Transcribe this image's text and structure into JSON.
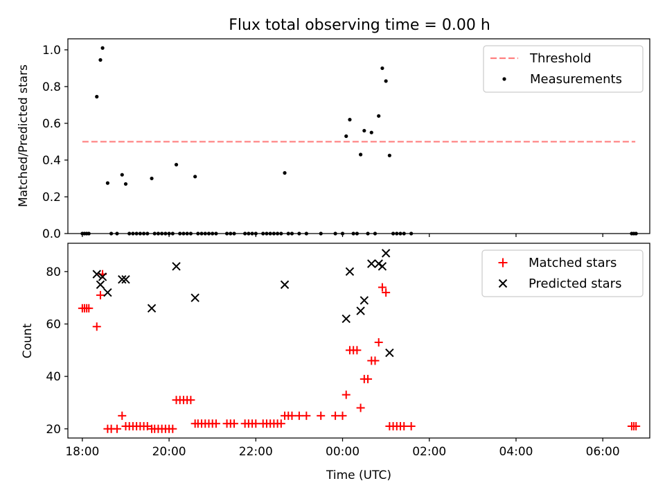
{
  "figure_title": "Flux total observing time = 0.00 h",
  "xlabel": "Time (UTC)",
  "chart_data": [
    {
      "type": "scatter",
      "ylabel": "Matched/Predicted stars",
      "ylim": [
        0.0,
        1.06
      ],
      "xlim": [
        "17:40",
        "07:05"
      ],
      "yticks": [
        "0.0",
        "0.2",
        "0.4",
        "0.6",
        "0.8",
        "1.0"
      ],
      "ytick_values": [
        0.0,
        0.2,
        0.4,
        0.6,
        0.8,
        1.0
      ],
      "grid": false,
      "legend_position": "top-right",
      "series": [
        {
          "name": "Threshold",
          "kind": "dashed-line",
          "color": "#ff7f7f",
          "points": [
            [
              "18:00",
              0.5
            ],
            [
              "06:45",
              0.5
            ]
          ]
        },
        {
          "name": "Measurements",
          "kind": "dot",
          "color": "#000000",
          "points": [
            [
              "18:00",
              0.0
            ],
            [
              "18:03",
              0.0
            ],
            [
              "18:06",
              0.0
            ],
            [
              "18:09",
              0.0
            ],
            [
              "18:20",
              0.745
            ],
            [
              "18:25",
              0.945
            ],
            [
              "18:28",
              1.01
            ],
            [
              "18:35",
              0.275
            ],
            [
              "18:40",
              0.0
            ],
            [
              "18:48",
              0.0
            ],
            [
              "18:55",
              0.32
            ],
            [
              "19:00",
              0.27
            ],
            [
              "19:05",
              0.0
            ],
            [
              "19:10",
              0.0
            ],
            [
              "19:15",
              0.0
            ],
            [
              "19:20",
              0.0
            ],
            [
              "19:25",
              0.0
            ],
            [
              "19:30",
              0.0
            ],
            [
              "19:36",
              0.3
            ],
            [
              "19:40",
              0.0
            ],
            [
              "19:45",
              0.0
            ],
            [
              "19:50",
              0.0
            ],
            [
              "19:55",
              0.0
            ],
            [
              "20:00",
              0.0
            ],
            [
              "20:05",
              0.0
            ],
            [
              "20:10",
              0.375
            ],
            [
              "20:15",
              0.0
            ],
            [
              "20:20",
              0.0
            ],
            [
              "20:25",
              0.0
            ],
            [
              "20:30",
              0.0
            ],
            [
              "20:36",
              0.31
            ],
            [
              "20:40",
              0.0
            ],
            [
              "20:45",
              0.0
            ],
            [
              "20:50",
              0.0
            ],
            [
              "20:55",
              0.0
            ],
            [
              "21:00",
              0.0
            ],
            [
              "21:05",
              0.0
            ],
            [
              "21:20",
              0.0
            ],
            [
              "21:25",
              0.0
            ],
            [
              "21:30",
              0.0
            ],
            [
              "21:45",
              0.0
            ],
            [
              "21:50",
              0.0
            ],
            [
              "21:55",
              0.0
            ],
            [
              "22:00",
              0.0
            ],
            [
              "22:10",
              0.0
            ],
            [
              "22:15",
              0.0
            ],
            [
              "22:20",
              0.0
            ],
            [
              "22:25",
              0.0
            ],
            [
              "22:30",
              0.0
            ],
            [
              "22:35",
              0.0
            ],
            [
              "22:40",
              0.33
            ],
            [
              "22:45",
              0.0
            ],
            [
              "22:50",
              0.0
            ],
            [
              "23:00",
              0.0
            ],
            [
              "23:10",
              0.0
            ],
            [
              "23:30",
              0.0
            ],
            [
              "23:50",
              0.0
            ],
            [
              "00:00",
              0.0
            ],
            [
              "00:05",
              0.53
            ],
            [
              "00:10",
              0.62
            ],
            [
              "00:15",
              0.0
            ],
            [
              "00:20",
              0.0
            ],
            [
              "00:25",
              0.43
            ],
            [
              "00:30",
              0.56
            ],
            [
              "00:35",
              0.0
            ],
            [
              "00:40",
              0.55
            ],
            [
              "00:45",
              0.0
            ],
            [
              "00:50",
              0.64
            ],
            [
              "00:55",
              0.9
            ],
            [
              "01:00",
              0.83
            ],
            [
              "01:05",
              0.425
            ],
            [
              "01:10",
              0.0
            ],
            [
              "01:15",
              0.0
            ],
            [
              "01:20",
              0.0
            ],
            [
              "01:25",
              0.0
            ],
            [
              "01:35",
              0.0
            ],
            [
              "06:40",
              0.0
            ],
            [
              "06:43",
              0.0
            ],
            [
              "06:46",
              0.0
            ]
          ]
        }
      ]
    },
    {
      "type": "scatter",
      "ylabel": "Count",
      "ylim": [
        16.5,
        90.8
      ],
      "xlim": [
        "17:40",
        "07:05"
      ],
      "yticks": [
        "20",
        "40",
        "60",
        "80"
      ],
      "ytick_values": [
        20,
        40,
        60,
        80
      ],
      "xticks": [
        "18:00",
        "20:00",
        "22:00",
        "00:00",
        "02:00",
        "04:00",
        "06:00"
      ],
      "grid": false,
      "legend_position": "top-right",
      "series": [
        {
          "name": "Matched stars",
          "kind": "plus",
          "color": "#ff0000",
          "points": [
            [
              "18:00",
              66
            ],
            [
              "18:03",
              66
            ],
            [
              "18:06",
              66
            ],
            [
              "18:09",
              66
            ],
            [
              "18:20",
              59
            ],
            [
              "18:25",
              71
            ],
            [
              "18:28",
              79
            ],
            [
              "18:35",
              20
            ],
            [
              "18:40",
              20
            ],
            [
              "18:48",
              20
            ],
            [
              "18:55",
              25
            ],
            [
              "19:00",
              21
            ],
            [
              "19:05",
              21
            ],
            [
              "19:10",
              21
            ],
            [
              "19:15",
              21
            ],
            [
              "19:20",
              21
            ],
            [
              "19:25",
              21
            ],
            [
              "19:30",
              21
            ],
            [
              "19:36",
              20
            ],
            [
              "19:40",
              20
            ],
            [
              "19:45",
              20
            ],
            [
              "19:50",
              20
            ],
            [
              "19:55",
              20
            ],
            [
              "20:00",
              20
            ],
            [
              "20:05",
              20
            ],
            [
              "20:10",
              31
            ],
            [
              "20:15",
              31
            ],
            [
              "20:20",
              31
            ],
            [
              "20:25",
              31
            ],
            [
              "20:30",
              31
            ],
            [
              "20:36",
              22
            ],
            [
              "20:40",
              22
            ],
            [
              "20:45",
              22
            ],
            [
              "20:50",
              22
            ],
            [
              "20:55",
              22
            ],
            [
              "21:00",
              22
            ],
            [
              "21:05",
              22
            ],
            [
              "21:20",
              22
            ],
            [
              "21:25",
              22
            ],
            [
              "21:30",
              22
            ],
            [
              "21:45",
              22
            ],
            [
              "21:50",
              22
            ],
            [
              "21:55",
              22
            ],
            [
              "22:00",
              22
            ],
            [
              "22:10",
              22
            ],
            [
              "22:15",
              22
            ],
            [
              "22:20",
              22
            ],
            [
              "22:25",
              22
            ],
            [
              "22:30",
              22
            ],
            [
              "22:35",
              22
            ],
            [
              "22:40",
              25
            ],
            [
              "22:45",
              25
            ],
            [
              "22:50",
              25
            ],
            [
              "23:00",
              25
            ],
            [
              "23:10",
              25
            ],
            [
              "23:30",
              25
            ],
            [
              "23:50",
              25
            ],
            [
              "00:00",
              25
            ],
            [
              "00:05",
              33
            ],
            [
              "00:10",
              50
            ],
            [
              "00:15",
              50
            ],
            [
              "00:20",
              50
            ],
            [
              "00:25",
              28
            ],
            [
              "00:30",
              39
            ],
            [
              "00:35",
              39
            ],
            [
              "00:40",
              46
            ],
            [
              "00:45",
              46
            ],
            [
              "00:50",
              53
            ],
            [
              "00:55",
              74
            ],
            [
              "01:00",
              72
            ],
            [
              "01:05",
              21
            ],
            [
              "01:10",
              21
            ],
            [
              "01:15",
              21
            ],
            [
              "01:20",
              21
            ],
            [
              "01:25",
              21
            ],
            [
              "01:35",
              21
            ],
            [
              "06:40",
              21
            ],
            [
              "06:43",
              21
            ],
            [
              "06:46",
              21
            ]
          ]
        },
        {
          "name": "Predicted stars",
          "kind": "x",
          "color": "#000000",
          "points": [
            [
              "18:20",
              79
            ],
            [
              "18:25",
              75
            ],
            [
              "18:28",
              78
            ],
            [
              "18:35",
              72
            ],
            [
              "18:55",
              77
            ],
            [
              "19:00",
              77
            ],
            [
              "19:36",
              66
            ],
            [
              "20:10",
              82
            ],
            [
              "20:36",
              70
            ],
            [
              "22:40",
              75
            ],
            [
              "00:05",
              62
            ],
            [
              "00:10",
              80
            ],
            [
              "00:25",
              65
            ],
            [
              "00:30",
              69
            ],
            [
              "00:40",
              83
            ],
            [
              "00:50",
              83
            ],
            [
              "00:55",
              82
            ],
            [
              "01:00",
              87
            ],
            [
              "01:05",
              49
            ]
          ]
        }
      ]
    }
  ]
}
